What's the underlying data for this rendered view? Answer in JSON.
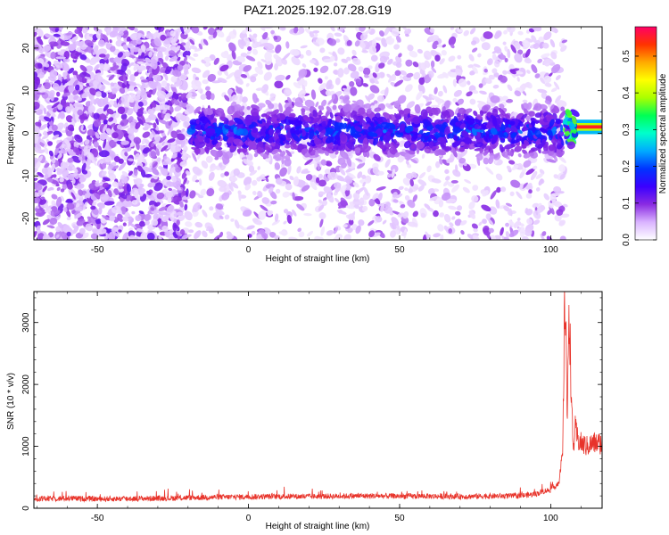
{
  "figure": {
    "title": "PAZ1.2025.192.07.28.G19"
  },
  "chart_data": [
    {
      "type": "heatmap",
      "xlabel": "Height of straight line (km)",
      "ylabel": "Frequency (Hz)",
      "xlim": [
        -71,
        117
      ],
      "ylim": [
        -25,
        25
      ],
      "x_ticks": [
        -50,
        0,
        50,
        100
      ],
      "y_ticks": [
        -20,
        -10,
        0,
        10,
        20
      ],
      "colorbar": {
        "label": "Normalized spectral amplitude",
        "range": [
          0,
          0.58
        ],
        "ticks": [
          0.0,
          0.1,
          0.2,
          0.3,
          0.4,
          0.5
        ],
        "tick_labels": [
          "0.0",
          "0.1",
          "0.2",
          "0.3",
          "0.4",
          "0.5"
        ],
        "colormap": [
          "#ffffff",
          "#d9b3ff",
          "#8a2be2",
          "#3a00ff",
          "#0033ff",
          "#00aaff",
          "#00ffcc",
          "#00ff55",
          "#aaff00",
          "#ffff00",
          "#ffaa00",
          "#ff3300",
          "#ff0066"
        ]
      },
      "features": [
        {
          "x_start": -71,
          "x_end": -20,
          "band_center_hz": null,
          "description": "broadband speckle"
        },
        {
          "x_start": -20,
          "x_end": 105,
          "band_center_hz": 0.5,
          "band_halfwidth_hz": 5
        },
        {
          "x_start": 105,
          "x_end": 117,
          "band_center_hz": 1.5,
          "band_halfwidth_hz": 1.2,
          "peak_amplitude": 0.58
        }
      ]
    },
    {
      "type": "line",
      "xlabel": "Height of straight line (km)",
      "ylabel": "SNR (10 * v/v)",
      "xlim": [
        -71,
        117
      ],
      "ylim": [
        0,
        3500
      ],
      "x_ticks": [
        -50,
        0,
        50,
        100
      ],
      "y_ticks": [
        0,
        1000,
        2000,
        3000
      ],
      "color": "#e8332a",
      "series": [
        {
          "x": [
            -71,
            -60,
            -50,
            -40,
            -30,
            -20,
            -10,
            0,
            10,
            20,
            30,
            40,
            50,
            60,
            70,
            80,
            90,
            95,
            98,
            100,
            102,
            103,
            104,
            104.5,
            105,
            105.5,
            106,
            106.5,
            107,
            107.5,
            108,
            109,
            110,
            112,
            114,
            117
          ],
          "y": [
            150,
            160,
            150,
            155,
            160,
            170,
            180,
            185,
            190,
            190,
            195,
            200,
            195,
            195,
            190,
            195,
            200,
            230,
            280,
            300,
            380,
            500,
            900,
            3000,
            3300,
            1200,
            3400,
            2500,
            1500,
            900,
            1300,
            1100,
            1050,
            1000,
            1050,
            1050
          ]
        }
      ]
    }
  ]
}
